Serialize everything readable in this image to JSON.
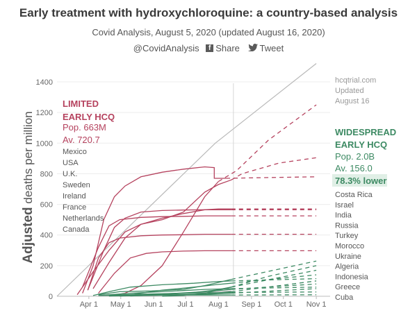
{
  "header": {
    "title": "Early treatment with hydroxychloroquine: a country-based analysis",
    "subtitle": "Covid Analysis, August 5, 2020 (updated August 16, 2020)",
    "handle": "@CovidAnalysis",
    "share_label": "Share",
    "tweet_label": "Tweet"
  },
  "chart_data": {
    "type": "line",
    "title": "Early treatment with hydroxychloroquine: a country-based analysis",
    "ylabel": "Adjusted deaths per million",
    "ylim": [
      0,
      1400
    ],
    "yticks": [
      0,
      200,
      400,
      600,
      800,
      1000,
      1200,
      1400
    ],
    "xticks": [
      {
        "label": "Apr 1",
        "day": 31
      },
      {
        "label": "May 1",
        "day": 61
      },
      {
        "label": "Jun 1",
        "day": 92
      },
      {
        "label": "Jul 1",
        "day": 122
      },
      {
        "label": "Aug 1",
        "day": 153
      },
      {
        "label": "Sep 1",
        "day": 184
      },
      {
        "label": "Oct 1",
        "day": 214
      },
      {
        "label": "Nov 1",
        "day": 245
      }
    ],
    "xlim": [
      1,
      258
    ],
    "cutoff_day": 167,
    "colors": {
      "limited": "#b5425e",
      "widespread": "#3d8a63",
      "hcq": "#b9b9b9",
      "lower_bg": "#e0efe6"
    },
    "limited_group": {
      "heading": [
        "LIMITED",
        "EARLY HCQ"
      ],
      "pop": "Pop. 663M",
      "avg": "Av. 720.7",
      "countries": [
        "Mexico",
        "USA",
        "U.K.",
        "Sweden",
        "Ireland",
        "France",
        "Netherlands",
        "Canada"
      ]
    },
    "widespread_group": {
      "heading": [
        "WIDESPREAD",
        "EARLY HCQ"
      ],
      "pop": "Pop. 2.0B",
      "avg": "Av. 156.0",
      "lower": "78.3% lower",
      "countries": [
        "Costa Rica",
        "Israel",
        "India",
        "Russia",
        "Turkey",
        "Morocco",
        "Ukraine",
        "Algeria",
        "Indonesia",
        "Greece",
        "Cuba"
      ]
    },
    "hcq_label": [
      "hcqtrial.com",
      "Updated",
      "August 16"
    ],
    "series": [
      {
        "name": "Mexico",
        "group": "limited",
        "points": [
          [
            50,
            2
          ],
          [
            65,
            20
          ],
          [
            80,
            70
          ],
          [
            100,
            200
          ],
          [
            120,
            420
          ],
          [
            140,
            650
          ],
          [
            153,
            750
          ]
        ],
        "projection": [
          [
            170,
            820
          ],
          [
            200,
            1020
          ],
          [
            245,
            1250
          ]
        ]
      },
      {
        "name": "USA",
        "group": "limited",
        "points": [
          [
            20,
            10
          ],
          [
            35,
            160
          ],
          [
            50,
            300
          ],
          [
            65,
            420
          ],
          [
            80,
            470
          ],
          [
            100,
            500
          ],
          [
            120,
            550
          ],
          [
            140,
            680
          ],
          [
            153,
            730
          ],
          [
            165,
            760
          ]
        ],
        "projection": [
          [
            175,
            800
          ],
          [
            210,
            870
          ],
          [
            245,
            905
          ]
        ]
      },
      {
        "name": "U.K.",
        "group": "limited",
        "points": [
          [
            25,
            20
          ],
          [
            35,
            200
          ],
          [
            45,
            500
          ],
          [
            55,
            650
          ],
          [
            65,
            720
          ],
          [
            80,
            780
          ],
          [
            100,
            810
          ],
          [
            120,
            830
          ],
          [
            140,
            845
          ],
          [
            149,
            840
          ],
          [
            149,
            770
          ],
          [
            160,
            770
          ]
        ],
        "projection": [
          [
            200,
            775
          ],
          [
            245,
            780
          ]
        ]
      },
      {
        "name": "Sweden",
        "group": "limited",
        "points": [
          [
            35,
            50
          ],
          [
            50,
            220
          ],
          [
            65,
            380
          ],
          [
            80,
            470
          ],
          [
            100,
            510
          ],
          [
            120,
            540
          ],
          [
            140,
            565
          ],
          [
            153,
            570
          ],
          [
            165,
            570
          ]
        ],
        "projection": [
          [
            205,
            570
          ],
          [
            245,
            570
          ]
        ]
      },
      {
        "name": "Ireland",
        "group": "limited",
        "points": [
          [
            30,
            40
          ],
          [
            45,
            300
          ],
          [
            55,
            450
          ],
          [
            65,
            510
          ],
          [
            80,
            550
          ],
          [
            100,
            560
          ],
          [
            120,
            563
          ],
          [
            140,
            565
          ],
          [
            165,
            565
          ]
        ],
        "projection": [
          [
            200,
            565
          ],
          [
            245,
            565
          ]
        ]
      },
      {
        "name": "France",
        "group": "limited",
        "points": [
          [
            25,
            60
          ],
          [
            40,
            320
          ],
          [
            50,
            460
          ],
          [
            60,
            500
          ],
          [
            80,
            515
          ],
          [
            100,
            520
          ],
          [
            120,
            522
          ],
          [
            140,
            525
          ],
          [
            165,
            525
          ]
        ],
        "projection": [
          [
            245,
            525
          ]
        ]
      },
      {
        "name": "Netherlands",
        "group": "limited",
        "points": [
          [
            30,
            40
          ],
          [
            40,
            250
          ],
          [
            50,
            350
          ],
          [
            60,
            380
          ],
          [
            80,
            395
          ],
          [
            100,
            400
          ],
          [
            120,
            402
          ],
          [
            140,
            405
          ],
          [
            165,
            405
          ]
        ],
        "projection": [
          [
            245,
            405
          ]
        ]
      },
      {
        "name": "Canada",
        "group": "limited",
        "points": [
          [
            40,
            20
          ],
          [
            55,
            150
          ],
          [
            70,
            250
          ],
          [
            85,
            280
          ],
          [
            100,
            290
          ],
          [
            120,
            295
          ],
          [
            140,
            297
          ],
          [
            165,
            297
          ]
        ],
        "projection": [
          [
            245,
            297
          ]
        ]
      },
      {
        "name": "Costa Rica",
        "group": "widespread",
        "points": [
          [
            100,
            0
          ],
          [
            120,
            5
          ],
          [
            140,
            20
          ],
          [
            165,
            60
          ]
        ],
        "projection": [
          [
            200,
            130
          ],
          [
            245,
            200
          ]
        ]
      },
      {
        "name": "Israel",
        "group": "widespread",
        "points": [
          [
            40,
            10
          ],
          [
            60,
            30
          ],
          [
            90,
            35
          ],
          [
            120,
            45
          ],
          [
            140,
            70
          ],
          [
            165,
            110
          ]
        ],
        "projection": [
          [
            245,
            230
          ]
        ]
      },
      {
        "name": "India",
        "group": "widespread",
        "points": [
          [
            70,
            2
          ],
          [
            100,
            10
          ],
          [
            130,
            25
          ],
          [
            150,
            40
          ],
          [
            165,
            60
          ]
        ],
        "projection": [
          [
            245,
            170
          ]
        ]
      },
      {
        "name": "Russia",
        "group": "widespread",
        "points": [
          [
            50,
            2
          ],
          [
            70,
            10
          ],
          [
            100,
            40
          ],
          [
            130,
            60
          ],
          [
            150,
            75
          ],
          [
            165,
            85
          ]
        ],
        "projection": [
          [
            245,
            140
          ]
        ]
      },
      {
        "name": "Turkey",
        "group": "widespread",
        "points": [
          [
            35,
            5
          ],
          [
            50,
            30
          ],
          [
            70,
            60
          ],
          [
            100,
            75
          ],
          [
            130,
            85
          ],
          [
            150,
            95
          ],
          [
            165,
            100
          ]
        ],
        "projection": [
          [
            245,
            115
          ]
        ]
      },
      {
        "name": "Morocco",
        "group": "widespread",
        "points": [
          [
            60,
            2
          ],
          [
            100,
            8
          ],
          [
            140,
            15
          ],
          [
            165,
            30
          ]
        ],
        "projection": [
          [
            245,
            100
          ]
        ]
      },
      {
        "name": "Ukraine",
        "group": "widespread",
        "points": [
          [
            60,
            2
          ],
          [
            100,
            15
          ],
          [
            140,
            30
          ],
          [
            165,
            45
          ]
        ],
        "projection": [
          [
            245,
            80
          ]
        ]
      },
      {
        "name": "Algeria",
        "group": "widespread",
        "points": [
          [
            40,
            5
          ],
          [
            70,
            20
          ],
          [
            100,
            30
          ],
          [
            140,
            45
          ],
          [
            165,
            50
          ]
        ],
        "projection": [
          [
            245,
            60
          ]
        ]
      },
      {
        "name": "Indonesia",
        "group": "widespread",
        "points": [
          [
            50,
            2
          ],
          [
            90,
            5
          ],
          [
            130,
            10
          ],
          [
            165,
            20
          ]
        ],
        "projection": [
          [
            245,
            50
          ]
        ]
      },
      {
        "name": "Greece",
        "group": "widespread",
        "points": [
          [
            40,
            5
          ],
          [
            70,
            12
          ],
          [
            120,
            20
          ],
          [
            165,
            25
          ]
        ],
        "projection": [
          [
            245,
            28
          ]
        ]
      },
      {
        "name": "Cuba",
        "group": "widespread",
        "points": [
          [
            40,
            5
          ],
          [
            70,
            7
          ],
          [
            165,
            8
          ]
        ],
        "projection": [
          [
            245,
            10
          ]
        ]
      }
    ],
    "hcq_baseline": [
      [
        60,
        8
      ],
      [
        100,
        15
      ],
      [
        140,
        25
      ],
      [
        165,
        35
      ]
    ],
    "hcq_line": [
      [
        1,
        0
      ],
      [
        150,
        1000
      ],
      [
        245,
        1520
      ]
    ]
  }
}
